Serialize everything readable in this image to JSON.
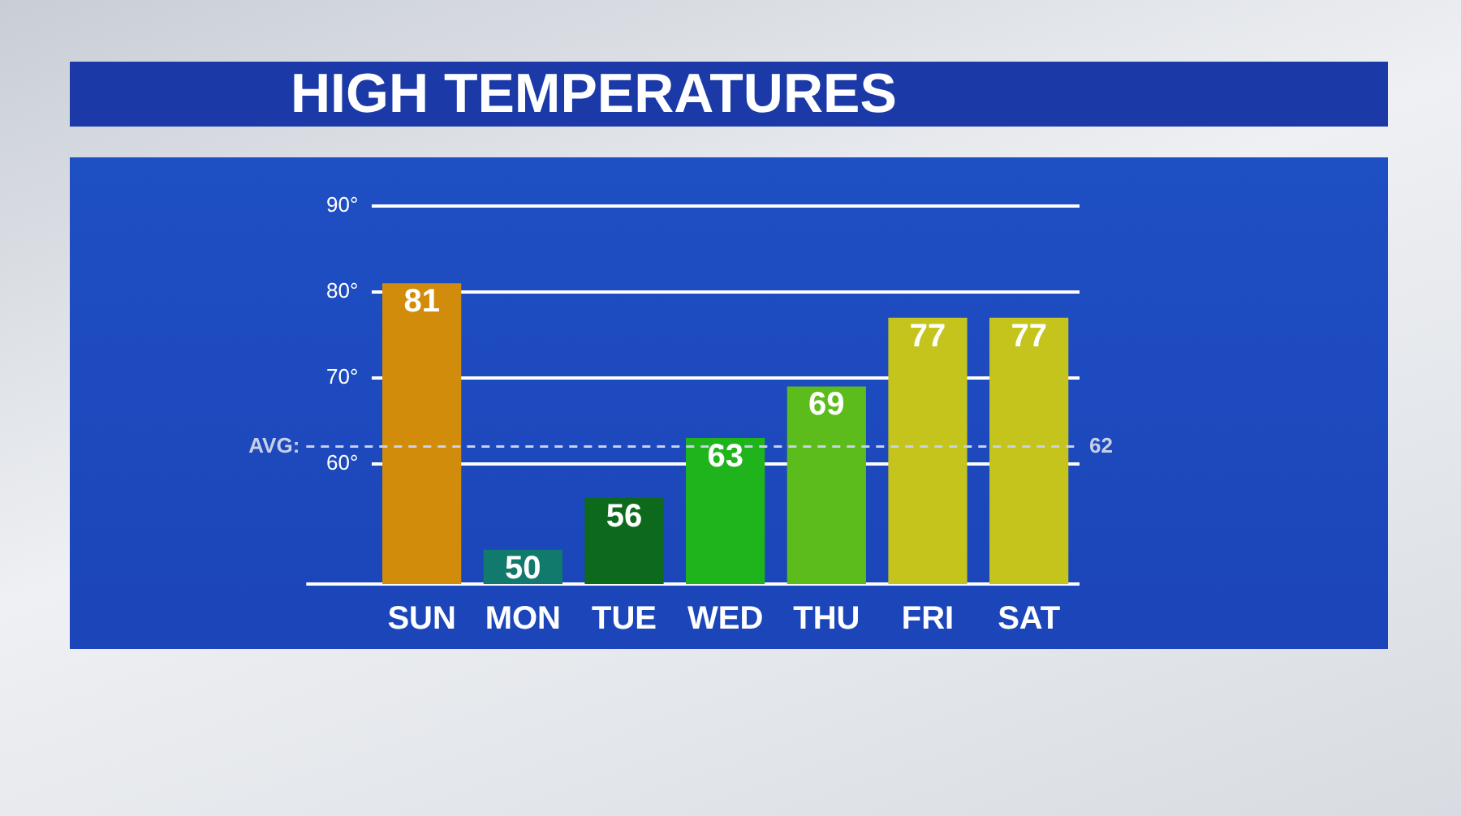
{
  "chart_data": {
    "type": "bar",
    "title": "HIGH TEMPERATURES",
    "categories": [
      "SUN",
      "MON",
      "TUE",
      "WED",
      "THU",
      "FRI",
      "SAT"
    ],
    "values": [
      81,
      50,
      56,
      63,
      69,
      77,
      77
    ],
    "colors": [
      "#d18c0c",
      "#127a6c",
      "#0d6a1c",
      "#20b41c",
      "#5cbc1c",
      "#c4c41c",
      "#c4c41c"
    ],
    "ylim": [
      46,
      90
    ],
    "annotations": [
      "62"
    ],
    "yticks": [
      {
        "value": 60,
        "label": "60°"
      },
      {
        "value": 70,
        "label": "70°"
      },
      {
        "value": 80,
        "label": "80°"
      },
      {
        "value": 90,
        "label": "90°"
      }
    ],
    "grid": "y",
    "data_labels": true,
    "ref_lines": [
      {
        "axis": "y",
        "value": 62,
        "label": "AVG:",
        "color": "#c8d0e8",
        "line_style": "dashed"
      }
    ]
  }
}
